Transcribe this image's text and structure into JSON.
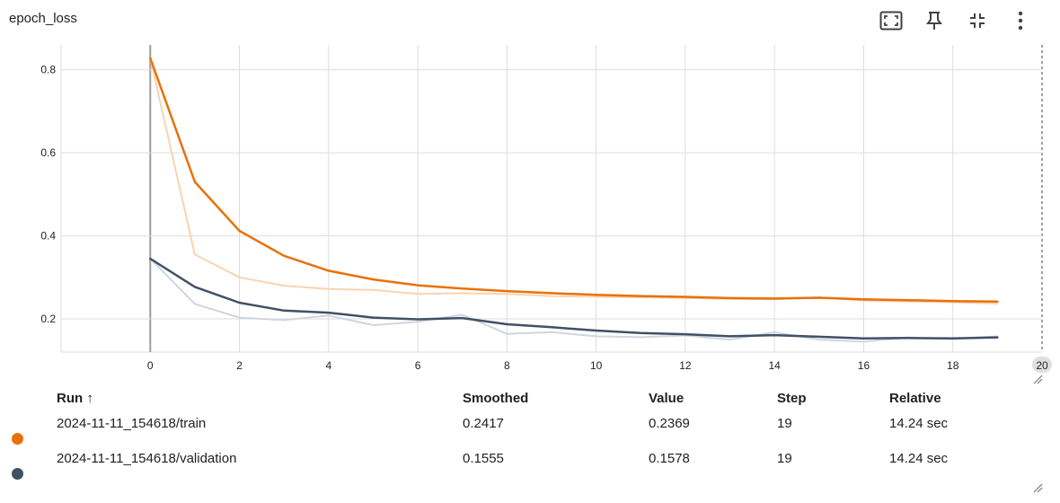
{
  "card": {
    "title": "epoch_loss"
  },
  "toolbar": {
    "icons": [
      "fullscreen-icon",
      "pin-icon",
      "collapse-icon",
      "more-vert-icon"
    ]
  },
  "colors": {
    "train": "#e8710a",
    "train_raw": "#fbd3b0",
    "validation": "#425066",
    "validation_raw": "#d0d5de",
    "grid": "#dddddd"
  },
  "chart_data": {
    "type": "line",
    "title": "epoch_loss",
    "xlabel": "",
    "ylabel": "",
    "xlim": [
      -2,
      20
    ],
    "ylim": [
      0.12,
      0.86
    ],
    "x_ticks": [
      0,
      2,
      4,
      6,
      8,
      10,
      12,
      14,
      16,
      18,
      20
    ],
    "y_ticks": [
      0.2,
      0.4,
      0.6,
      0.8
    ],
    "grid": true,
    "x": [
      0,
      1,
      2,
      3,
      4,
      5,
      6,
      7,
      8,
      9,
      10,
      11,
      12,
      13,
      14,
      15,
      16,
      17,
      18,
      19
    ],
    "series": [
      {
        "name": "2024-11-11_154618/train",
        "kind": "smoothed",
        "color": "#e8710a",
        "values": [
          0.828,
          0.53,
          0.412,
          0.352,
          0.316,
          0.295,
          0.281,
          0.273,
          0.267,
          0.262,
          0.258,
          0.255,
          0.253,
          0.25,
          0.249,
          0.251,
          0.247,
          0.245,
          0.243,
          0.2417
        ]
      },
      {
        "name": "2024-11-11_154618/train",
        "kind": "raw",
        "color": "#fbd3b0",
        "values": [
          0.828,
          0.355,
          0.3,
          0.28,
          0.272,
          0.27,
          0.26,
          0.262,
          0.26,
          0.255,
          0.253,
          0.252,
          0.25,
          0.248,
          0.247,
          0.252,
          0.244,
          0.242,
          0.24,
          0.2369
        ]
      },
      {
        "name": "2024-11-11_154618/validation",
        "kind": "smoothed",
        "color": "#425066",
        "values": [
          0.345,
          0.277,
          0.239,
          0.22,
          0.215,
          0.203,
          0.199,
          0.202,
          0.187,
          0.18,
          0.172,
          0.166,
          0.163,
          0.158,
          0.161,
          0.157,
          0.153,
          0.154,
          0.153,
          0.1555
        ]
      },
      {
        "name": "2024-11-11_154618/validation",
        "kind": "raw",
        "color": "#d0d5de",
        "values": [
          0.345,
          0.236,
          0.203,
          0.197,
          0.208,
          0.185,
          0.193,
          0.21,
          0.164,
          0.168,
          0.158,
          0.156,
          0.16,
          0.15,
          0.168,
          0.15,
          0.145,
          0.155,
          0.152,
          0.1578
        ]
      }
    ]
  },
  "table": {
    "headers": {
      "run": "Run ↑",
      "smoothed": "Smoothed",
      "value": "Value",
      "step": "Step",
      "relative": "Relative"
    },
    "rows": [
      {
        "color": "#e8710a",
        "run": "2024-11-11_154618/train",
        "smoothed": "0.2417",
        "value": "0.2369",
        "step": "19",
        "relative": "14.24 sec"
      },
      {
        "color": "#425066",
        "run": "2024-11-11_154618/validation",
        "smoothed": "0.1555",
        "value": "0.1578",
        "step": "19",
        "relative": "14.24 sec"
      }
    ]
  }
}
